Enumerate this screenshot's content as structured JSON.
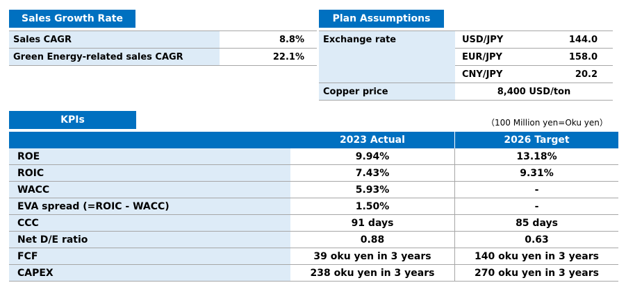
{
  "sales_growth": {
    "title": "Sales Growth Rate",
    "rows": [
      {
        "label": "Sales CAGR",
        "value": "8.8%"
      },
      {
        "label": "Green Energy-related sales CAGR",
        "value": "22.1%"
      }
    ]
  },
  "plan_assumptions": {
    "title": "Plan Assumptions",
    "exchange_label": "Exchange rate",
    "rates": [
      {
        "pair": "USD/JPY",
        "value": "144.0"
      },
      {
        "pair": "EUR/JPY",
        "value": "158.0"
      },
      {
        "pair": "CNY/JPY",
        "value": "20.2"
      }
    ],
    "copper_label": "Copper price",
    "copper_value": "8,400 USD/ton"
  },
  "kpis": {
    "title": "KPIs",
    "unit_note": "（100 Million yen=Oku yen）",
    "col1": "2023 Actual",
    "col2": "2026 Target",
    "rows": [
      {
        "label": "ROE",
        "actual": "9.94%",
        "target": "13.18%"
      },
      {
        "label": "ROIC",
        "actual": "7.43%",
        "target": "9.31%"
      },
      {
        "label": "WACC",
        "actual": "5.93%",
        "target": "-"
      },
      {
        "label": "EVA spread (=ROIC - WACC)",
        "actual": "1.50%",
        "target": "-"
      },
      {
        "label": "CCC",
        "actual": "91 days",
        "target": "85 days"
      },
      {
        "label": "Net D/E ratio",
        "actual": "0.88",
        "target": "0.63"
      },
      {
        "label": "FCF",
        "actual": "39 oku yen in 3 years",
        "target": "140 oku yen in 3 years"
      },
      {
        "label": "CAPEX",
        "actual": "238 oku yen in 3 years",
        "target": "270 oku yen in 3 years"
      }
    ]
  }
}
